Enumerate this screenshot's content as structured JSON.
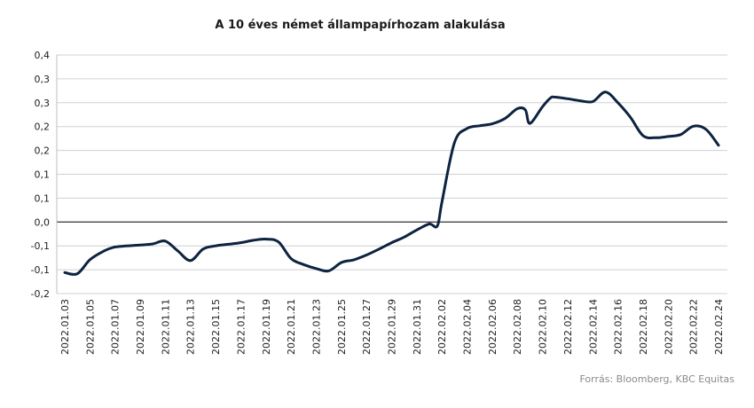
{
  "chart_data": {
    "type": "line",
    "title": "A 10 éves német állampapírhozam alakulása",
    "source": "Forrás: Bloomberg,  KBC Equitas",
    "yticks": [
      "-0,2",
      "-0,1",
      "-0,1",
      "0,0",
      "0,1",
      "0,1",
      "0,2",
      "0,2",
      "0,3",
      "0,3",
      "0,4"
    ],
    "ylim": [
      -0.2,
      0.4
    ],
    "grid": true,
    "xticks": [
      "2022.01.03",
      "2022.01.05",
      "2022.01.07",
      "2022.01.09",
      "2022.01.11",
      "2022.01.13",
      "2022.01.15",
      "2022.01.17",
      "2022.01.19",
      "2022.01.21",
      "2022.01.23",
      "2022.01.25",
      "2022.01.27",
      "2022.01.29",
      "2022.01.31",
      "2022.02.02",
      "2022.02.04",
      "2022.02.06",
      "2022.02.08",
      "2022.02.10",
      "2022.02.12",
      "2022.02.14",
      "2022.02.16",
      "2022.02.18",
      "2022.02.20",
      "2022.02.22",
      "2022.02.24"
    ],
    "series": [
      {
        "color": "#0d2340",
        "x": [
          "2022.01.03",
          "2022.01.04",
          "2022.01.05",
          "2022.01.06",
          "2022.01.07",
          "2022.01.09",
          "2022.01.10",
          "2022.01.11",
          "2022.01.12",
          "2022.01.13",
          "2022.01.14",
          "2022.01.15",
          "2022.01.16",
          "2022.01.17",
          "2022.01.18",
          "2022.01.19",
          "2022.01.20",
          "2022.01.21",
          "2022.01.22",
          "2022.01.23",
          "2022.01.24",
          "2022.01.25",
          "2022.01.26",
          "2022.01.27",
          "2022.01.28",
          "2022.01.29",
          "2022.01.30",
          "2022.01.31",
          "2022.02.01",
          "2022.02.01",
          "2022.02.02",
          "2022.02.03",
          "2022.02.04",
          "2022.02.05",
          "2022.02.06",
          "2022.02.07",
          "2022.02.08",
          "2022.02.08",
          "2022.02.09",
          "2022.02.10",
          "2022.02.10",
          "2022.02.11",
          "2022.02.12",
          "2022.02.13",
          "2022.02.14",
          "2022.02.15",
          "2022.02.16",
          "2022.02.17",
          "2022.02.18",
          "2022.02.19",
          "2022.02.20",
          "2022.02.21",
          "2022.02.22",
          "2022.02.23",
          "2022.02.24"
        ],
        "values": [
          -0.147,
          -0.15,
          -0.115,
          -0.095,
          -0.083,
          -0.078,
          -0.075,
          -0.068,
          -0.093,
          -0.117,
          -0.088,
          -0.08,
          -0.076,
          -0.072,
          -0.066,
          -0.063,
          -0.07,
          -0.112,
          -0.127,
          -0.137,
          -0.143,
          -0.122,
          -0.115,
          -0.103,
          -0.088,
          -0.072,
          -0.058,
          -0.04,
          -0.025,
          -0.03,
          0.03,
          0.18,
          0.215,
          0.222,
          0.227,
          0.24,
          0.265,
          0.262,
          0.228,
          0.27,
          0.292,
          0.294,
          0.29,
          0.285,
          0.283,
          0.307,
          0.28,
          0.243,
          0.197,
          0.192,
          0.195,
          0.2,
          0.221,
          0.213,
          0.173
        ]
      }
    ]
  }
}
